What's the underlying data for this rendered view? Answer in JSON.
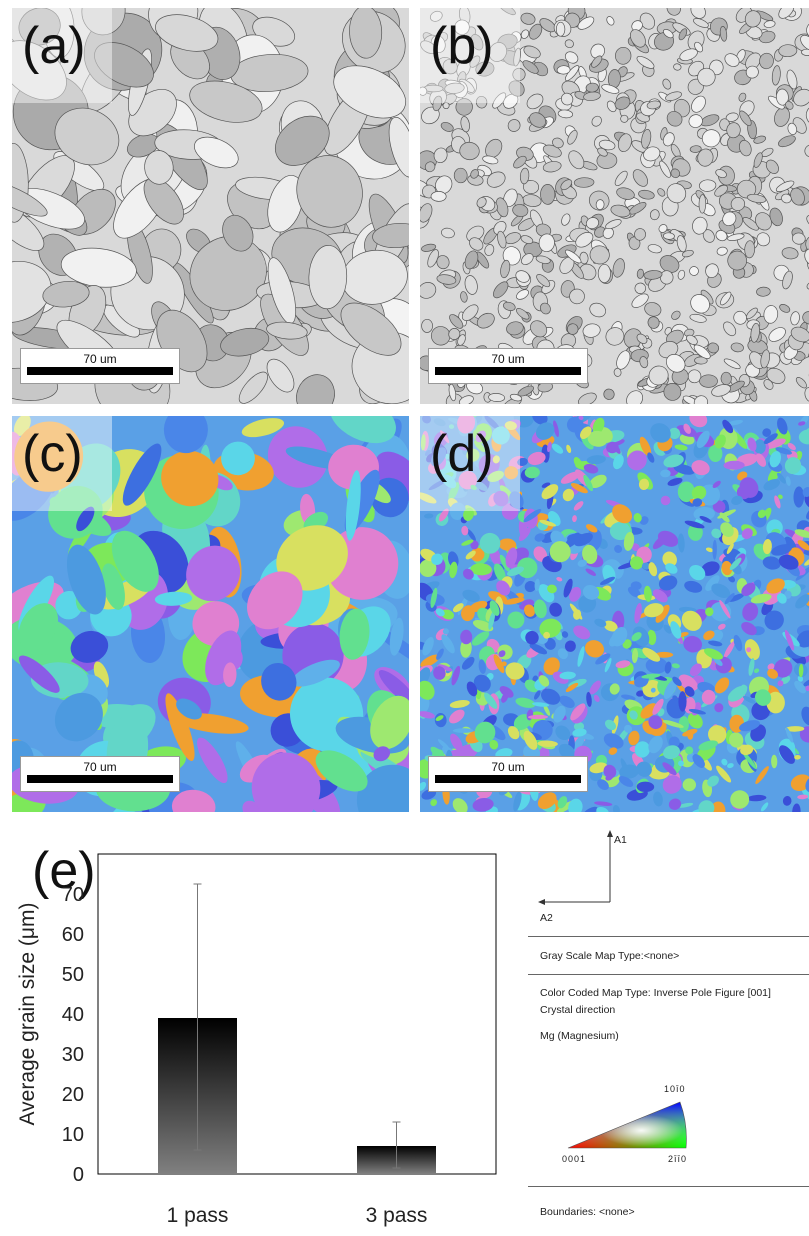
{
  "panels": [
    {
      "label": "(a)",
      "scale": "70 um",
      "kind": "band-contrast"
    },
    {
      "label": "(b)",
      "scale": "70 um",
      "kind": "band-contrast"
    },
    {
      "label": "(c)",
      "scale": "70 um",
      "kind": "orientation-map"
    },
    {
      "label": "(d)",
      "scale": "70 um",
      "kind": "orientation-map"
    }
  ],
  "chart_data": {
    "type": "bar",
    "panel_label": "(e)",
    "categories": [
      "1 pass",
      "3 pass"
    ],
    "values": [
      39,
      7
    ],
    "error_high": [
      72.5,
      13
    ],
    "error_low": [
      6,
      1.5
    ],
    "ylabel": "Average grain size (μm)",
    "ylim": [
      0,
      80
    ],
    "yticks": [
      0,
      10,
      20,
      30,
      40,
      50,
      60,
      70
    ],
    "grid": false,
    "colors": {
      "bar_top": "#000000",
      "bar_bottom": "#808080"
    }
  },
  "legend": {
    "axis_up": "A1",
    "axis_left": "A2",
    "gray_scale": "Gray Scale Map Type:<none>",
    "color_coded": "Color Coded Map Type: Inverse Pole Figure [001]",
    "crystal_direction": "Crystal direction",
    "phase": "Mg (Magnesium)",
    "ipf_top": "10ī0",
    "ipf_left": "0001",
    "ipf_right": "2īī0",
    "boundaries": "Boundaries: <none>"
  }
}
